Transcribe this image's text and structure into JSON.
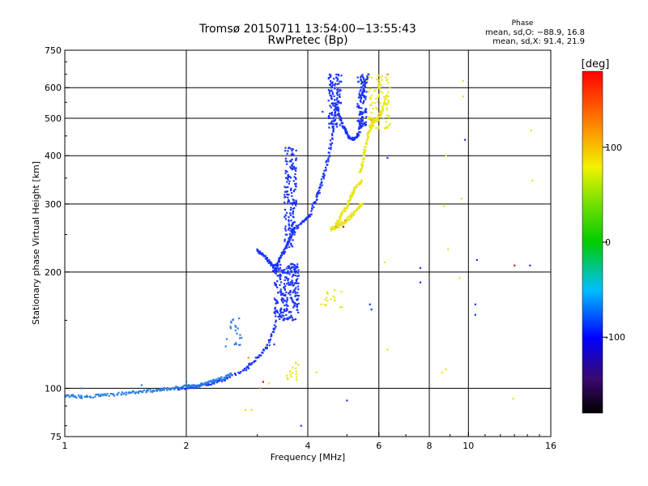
{
  "chart_data": {
    "type": "scatter",
    "title": "Tromsø 20150711 13:54:00−13:55:43",
    "subtitle": "RwPretec (Bp)",
    "xlabel": "Frequency [MHz]",
    "ylabel": "Stationary phase Virtual Height [km]",
    "x_scale": "log",
    "y_scale": "log",
    "xlim": [
      1,
      16
    ],
    "ylim": [
      75,
      750
    ],
    "x_ticks": [
      1,
      2,
      4,
      6,
      8,
      10,
      16
    ],
    "x_tick_labels": [
      "1",
      "2",
      "4",
      "6",
      "8",
      "10",
      "16"
    ],
    "y_ticks": [
      75,
      100,
      200,
      300,
      400,
      500,
      600,
      750
    ],
    "y_tick_labels": [
      "75",
      "100",
      "200",
      "300",
      "400",
      "500",
      "600",
      "750"
    ],
    "grid": true,
    "stats": {
      "heading": "Phase",
      "line_o": "mean, sd,O: −88.9, 16.8",
      "line_x": "mean, sd,X:  91.4, 21.9"
    },
    "colorbar": {
      "label": "[deg]",
      "range": [
        -180,
        180
      ],
      "ticks": [
        100,
        0,
        -100
      ],
      "tick_labels": [
        "100",
        "0",
        "-100"
      ],
      "placement": "right"
    },
    "series": [
      {
        "phase_deg": -110,
        "color": "#1a33ff",
        "segments": [
          {
            "x": [
              1.9,
              2.1,
              2.3,
              2.5,
              2.8,
              3.0,
              3.2,
              3.35
            ],
            "y": [
              100,
              101,
              103,
              106,
              112,
              120,
              130,
              150
            ]
          },
          {
            "x": [
              3.3,
              3.4,
              3.5,
              3.6,
              3.7,
              3.9,
              4.1
            ],
            "y": [
              200,
              215,
              228,
              242,
              258,
              272,
              282
            ]
          },
          {
            "x": [
              4.1,
              4.25,
              4.4,
              4.55,
              4.65,
              4.75
            ],
            "y": [
              290,
              320,
              360,
              420,
              500,
              600
            ]
          },
          {
            "x": [
              3.0,
              3.1,
              3.2,
              3.3
            ],
            "y": [
              228,
              222,
              214,
              205
            ]
          },
          {
            "x": [
              4.75,
              4.9,
              5.05,
              5.2,
              5.35,
              5.5
            ],
            "y": [
              520,
              475,
              448,
              440,
              455,
              520
            ]
          },
          {
            "x": [
              5.4,
              5.55,
              5.65
            ],
            "y": [
              560,
              620,
              650
            ]
          }
        ],
        "clusters": [
          {
            "x_range": [
              3.3,
              3.8
            ],
            "y_range": [
              150,
              210
            ],
            "count": 260
          },
          {
            "x_range": [
              3.5,
              3.75
            ],
            "y_range": [
              230,
              420
            ],
            "count": 160
          },
          {
            "x_range": [
              4.5,
              4.85
            ],
            "y_range": [
              470,
              650
            ],
            "count": 110
          },
          {
            "x_range": [
              5.3,
              5.6
            ],
            "y_range": [
              470,
              650
            ],
            "count": 90
          }
        ],
        "points": [
          {
            "x": 3.6,
            "y": 420
          },
          {
            "x": 4.35,
            "y": 520
          },
          {
            "x": 5.7,
            "y": 165
          },
          {
            "x": 5.75,
            "y": 160
          },
          {
            "x": 5.0,
            "y": 93
          },
          {
            "x": 3.85,
            "y": 80
          },
          {
            "x": 7.6,
            "y": 205
          },
          {
            "x": 7.6,
            "y": 188
          },
          {
            "x": 10.5,
            "y": 215
          },
          {
            "x": 10.4,
            "y": 165
          },
          {
            "x": 10.4,
            "y": 155
          },
          {
            "x": 14.2,
            "y": 208
          },
          {
            "x": 6.3,
            "y": 395
          },
          {
            "x": 9.8,
            "y": 440
          },
          {
            "x": 3.3,
            "y": 130
          }
        ]
      },
      {
        "phase_deg": -80,
        "color": "#2a7fe8",
        "segments": [
          {
            "x": [
              1.0,
              1.1,
              1.25,
              1.4,
              1.55,
              1.7,
              1.85,
              2.0
            ],
            "y": [
              96,
              95,
              96,
              97,
              98,
              99,
              100,
              101
            ]
          },
          {
            "x": [
              2.0,
              2.15,
              2.3,
              2.45,
              2.6
            ],
            "y": [
              101,
              102,
              104,
              106,
              109
            ]
          }
        ],
        "clusters": [
          {
            "x_range": [
              2.5,
              2.8
            ],
            "y_range": [
              128,
              155
            ],
            "count": 22
          }
        ],
        "points": [
          {
            "x": 1.1,
            "y": 100
          },
          {
            "x": 1.55,
            "y": 102
          },
          {
            "x": 2.0,
            "y": 104
          }
        ]
      },
      {
        "phase_deg": 90,
        "color": "#e6e619",
        "segments": [
          {
            "x": [
              4.55,
              4.7,
              4.9,
              5.1,
              5.3,
              5.45
            ],
            "y": [
              258,
              262,
              268,
              278,
              290,
              300
            ]
          },
          {
            "x": [
              4.65,
              4.8,
              4.95,
              5.1,
              5.25,
              5.45
            ],
            "y": [
              260,
              275,
              292,
              310,
              330,
              345
            ]
          },
          {
            "x": [
              5.4,
              5.5,
              5.6,
              5.75,
              5.9
            ],
            "y": [
              360,
              400,
              440,
              480,
              500
            ]
          },
          {
            "x": [
              5.7,
              5.9,
              6.1,
              6.3
            ],
            "y": [
              500,
              490,
              520,
              580
            ]
          }
        ],
        "clusters": [
          {
            "x_range": [
              5.6,
              6.4
            ],
            "y_range": [
              470,
              650
            ],
            "count": 85
          },
          {
            "x_range": [
              4.3,
              4.9
            ],
            "y_range": [
              155,
              180
            ],
            "count": 16
          },
          {
            "x_range": [
              3.5,
              3.8
            ],
            "y_range": [
              105,
              118
            ],
            "count": 16
          }
        ],
        "points": [
          {
            "x": 9.7,
            "y": 625
          },
          {
            "x": 9.7,
            "y": 570
          },
          {
            "x": 14.3,
            "y": 465
          },
          {
            "x": 14.4,
            "y": 345
          },
          {
            "x": 8.8,
            "y": 400
          },
          {
            "x": 9.6,
            "y": 310
          },
          {
            "x": 8.7,
            "y": 296
          },
          {
            "x": 8.9,
            "y": 229
          },
          {
            "x": 9.5,
            "y": 193
          },
          {
            "x": 6.2,
            "y": 212
          },
          {
            "x": 6.3,
            "y": 126
          },
          {
            "x": 8.8,
            "y": 112
          },
          {
            "x": 8.6,
            "y": 110
          },
          {
            "x": 12.9,
            "y": 94
          },
          {
            "x": 2.8,
            "y": 88
          },
          {
            "x": 2.9,
            "y": 88
          },
          {
            "x": 3.2,
            "y": 103
          },
          {
            "x": 4.2,
            "y": 110
          }
        ]
      },
      {
        "phase_deg": 140,
        "color": "#ff8a1a",
        "segments": [],
        "clusters": [],
        "points": [
          {
            "x": 4.7,
            "y": 262
          },
          {
            "x": 4.95,
            "y": 272
          },
          {
            "x": 6.3,
            "y": 650
          },
          {
            "x": 6.0,
            "y": 510
          },
          {
            "x": 5.75,
            "y": 495
          },
          {
            "x": 3.05,
            "y": 100
          },
          {
            "x": 2.85,
            "y": 120
          }
        ]
      },
      {
        "phase_deg": 160,
        "color": "#e60000",
        "segments": [],
        "clusters": [],
        "points": [
          {
            "x": 13.0,
            "y": 208
          },
          {
            "x": 4.9,
            "y": 262
          },
          {
            "x": 3.1,
            "y": 104
          }
        ]
      }
    ]
  }
}
